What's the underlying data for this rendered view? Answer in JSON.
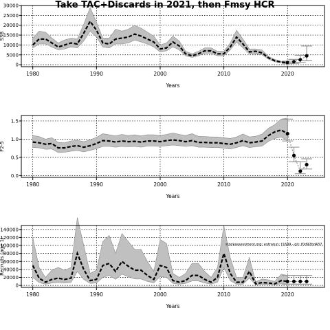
{
  "page_title": "Take TAC+Discards in 2021, then Fmsy HCR",
  "watermark": "stockassessment.org: extrarun: t1699 - git: f0d92bd437",
  "colors": {
    "band": "#c0c0c0",
    "band_edge": "#8a8a8a",
    "line": "#000000",
    "forecast": "#999999"
  },
  "chart_data": [
    {
      "type": "line",
      "name": "ssb",
      "title": "",
      "xlabel": "Years",
      "ylabel": "SSB",
      "xlim": [
        1978.2,
        2025.8
      ],
      "ylim": [
        -1000,
        30000
      ],
      "xticks": [
        1980,
        1990,
        2000,
        2010,
        2020
      ],
      "yticks": [
        0,
        5000,
        10000,
        15000,
        20000,
        25000,
        30000
      ],
      "grid": true,
      "x": [
        1980,
        1981,
        1982,
        1983,
        1984,
        1985,
        1986,
        1987,
        1988,
        1989,
        1990,
        1991,
        1992,
        1993,
        1994,
        1995,
        1996,
        1997,
        1998,
        1999,
        2000,
        2001,
        2002,
        2003,
        2004,
        2005,
        2006,
        2007,
        2008,
        2009,
        2010,
        2011,
        2012,
        2013,
        2014,
        2015,
        2016,
        2017,
        2018,
        2019,
        2020
      ],
      "estimate": [
        10000,
        13000,
        13000,
        11000,
        9000,
        10000,
        11000,
        10500,
        16000,
        22000,
        17500,
        11000,
        10500,
        13000,
        13500,
        14000,
        15500,
        14500,
        13000,
        11500,
        8000,
        8500,
        11500,
        9500,
        5500,
        4500,
        5500,
        7000,
        7000,
        5500,
        5500,
        9000,
        14000,
        10500,
        6500,
        6800,
        6000,
        3500,
        2000,
        1300,
        1100
      ],
      "lower": [
        8500,
        10500,
        10500,
        9000,
        7500,
        8000,
        9000,
        8500,
        12000,
        17000,
        14000,
        9000,
        8500,
        10500,
        10500,
        11000,
        12500,
        11500,
        10500,
        9000,
        6500,
        7000,
        9000,
        7500,
        4500,
        3700,
        4500,
        5800,
        5800,
        4500,
        4500,
        7500,
        11500,
        8500,
        5500,
        5500,
        5000,
        2800,
        1500,
        900,
        700
      ],
      "upper": [
        13500,
        17000,
        16500,
        13500,
        11000,
        12500,
        13500,
        13000,
        20500,
        29000,
        21500,
        13500,
        13500,
        18000,
        17000,
        18000,
        20000,
        18500,
        16500,
        14500,
        10000,
        11000,
        14500,
        12000,
        6800,
        5500,
        6800,
        8500,
        8500,
        6800,
        6800,
        11000,
        17500,
        13000,
        8000,
        8000,
        7500,
        4200,
        2700,
        1800,
        1600
      ],
      "forecast": {
        "x": [
          2020,
          2021,
          2022,
          2023
        ],
        "median": [
          1100,
          1500,
          2500,
          4500
        ],
        "lower": [
          500,
          700,
          1200,
          2000
        ],
        "upper": [
          1800,
          2700,
          4800,
          9500
        ]
      }
    },
    {
      "type": "line",
      "name": "fbar",
      "title": "",
      "xlabel": "Years",
      "ylabel": "F2-5",
      "xlim": [
        1978.2,
        2025.8
      ],
      "ylim": [
        -0.05,
        1.65
      ],
      "xticks": [
        1980,
        1990,
        2000,
        2010,
        2020
      ],
      "yticks": [
        0.0,
        0.5,
        1.0,
        1.5
      ],
      "ytick_labels": [
        "0.0",
        "0.5",
        "1.0",
        "1.5"
      ],
      "grid": true,
      "x": [
        1980,
        1981,
        1982,
        1983,
        1984,
        1985,
        1986,
        1987,
        1988,
        1989,
        1990,
        1991,
        1992,
        1993,
        1994,
        1995,
        1996,
        1997,
        1998,
        1999,
        2000,
        2001,
        2002,
        2003,
        2004,
        2005,
        2006,
        2007,
        2008,
        2009,
        2010,
        2011,
        2012,
        2013,
        2014,
        2015,
        2016,
        2017,
        2018,
        2019,
        2020
      ],
      "estimate": [
        0.92,
        0.9,
        0.86,
        0.88,
        0.76,
        0.76,
        0.8,
        0.82,
        0.78,
        0.82,
        0.88,
        0.96,
        0.95,
        0.92,
        0.95,
        0.93,
        0.94,
        0.92,
        0.95,
        0.95,
        0.93,
        0.96,
        0.98,
        0.96,
        0.93,
        0.96,
        0.91,
        0.91,
        0.9,
        0.9,
        0.88,
        0.86,
        0.9,
        0.96,
        0.9,
        0.92,
        0.95,
        1.1,
        1.2,
        1.25,
        1.15
      ],
      "lower": [
        0.77,
        0.76,
        0.72,
        0.73,
        0.63,
        0.64,
        0.67,
        0.69,
        0.65,
        0.69,
        0.74,
        0.8,
        0.8,
        0.78,
        0.8,
        0.79,
        0.8,
        0.78,
        0.81,
        0.81,
        0.8,
        0.82,
        0.84,
        0.82,
        0.8,
        0.82,
        0.78,
        0.78,
        0.77,
        0.77,
        0.75,
        0.73,
        0.77,
        0.82,
        0.77,
        0.79,
        0.81,
        0.94,
        1.02,
        1.06,
        0.95
      ],
      "upper": [
        1.1,
        1.07,
        1.0,
        1.04,
        0.91,
        0.9,
        0.95,
        0.97,
        0.93,
        0.98,
        1.05,
        1.15,
        1.12,
        1.09,
        1.13,
        1.1,
        1.12,
        1.09,
        1.12,
        1.12,
        1.1,
        1.13,
        1.17,
        1.13,
        1.1,
        1.15,
        1.08,
        1.07,
        1.06,
        1.06,
        1.04,
        1.02,
        1.06,
        1.14,
        1.06,
        1.08,
        1.14,
        1.3,
        1.4,
        1.55,
        1.58
      ],
      "forecast": {
        "x": [
          2020,
          2021,
          2022,
          2023
        ],
        "median": [
          1.15,
          0.55,
          0.12,
          0.3
        ],
        "lower": [
          0.95,
          0.38,
          0.05,
          0.18
        ],
        "upper": [
          1.55,
          0.78,
          0.38,
          0.46
        ]
      }
    },
    {
      "type": "line",
      "name": "recruitment",
      "title": "",
      "xlabel": "Years",
      "ylabel": "Recruits (age 1)",
      "xlim": [
        1978.2,
        2025.8
      ],
      "ylim": [
        -5000,
        150000
      ],
      "xticks": [
        1980,
        1990,
        2000,
        2010,
        2020
      ],
      "yticks": [
        0,
        20000,
        40000,
        60000,
        80000,
        100000,
        120000,
        140000
      ],
      "ytick_labels": [
        "0",
        "20000",
        "40000",
        "60000",
        "80000",
        "100000",
        "120000",
        "140000"
      ],
      "grid": true,
      "x": [
        1980,
        1981,
        1982,
        1983,
        1984,
        1985,
        1986,
        1987,
        1988,
        1989,
        1990,
        1991,
        1992,
        1993,
        1994,
        1995,
        1996,
        1997,
        1998,
        1999,
        2000,
        2001,
        2002,
        2003,
        2004,
        2005,
        2006,
        2007,
        2008,
        2009,
        2010,
        2011,
        2012,
        2013,
        2014,
        2015,
        2016,
        2017,
        2018,
        2019,
        2020
      ],
      "estimate": [
        50000,
        18000,
        8000,
        15000,
        18000,
        15000,
        18000,
        80000,
        40000,
        12000,
        15000,
        50000,
        55000,
        35000,
        60000,
        48000,
        38000,
        38000,
        25000,
        15000,
        50000,
        45000,
        12000,
        8000,
        12000,
        25000,
        25000,
        15000,
        8000,
        20000,
        80000,
        30000,
        8000,
        8000,
        35000,
        4000,
        7000,
        6000,
        4000,
        12000,
        10000
      ],
      "lower": [
        20000,
        7000,
        3000,
        6000,
        7000,
        6000,
        7000,
        35000,
        15000,
        5000,
        6000,
        20000,
        25000,
        15000,
        28000,
        22000,
        16000,
        16000,
        10000,
        6000,
        22000,
        20000,
        5000,
        3000,
        5000,
        11000,
        11000,
        6000,
        3000,
        8000,
        45000,
        12000,
        3000,
        3000,
        18000,
        1500,
        2500,
        2000,
        1500,
        4000,
        3000
      ],
      "upper": [
        120000,
        45000,
        20000,
        38000,
        45000,
        38000,
        45000,
        170000,
        100000,
        30000,
        38000,
        110000,
        125000,
        80000,
        130000,
        110000,
        90000,
        90000,
        60000,
        35000,
        115000,
        105000,
        30000,
        20000,
        30000,
        55000,
        55000,
        35000,
        20000,
        45000,
        150000,
        70000,
        20000,
        20000,
        70000,
        9000,
        16000,
        14000,
        10000,
        28000,
        25000
      ],
      "forecast": {
        "x": [
          2020,
          2021,
          2022,
          2023
        ],
        "median": [
          10000,
          10000,
          10000,
          10000
        ],
        "lower": [
          3000,
          3000,
          3000,
          3000
        ],
        "upper": [
          25000,
          25000,
          25000,
          25000
        ]
      }
    }
  ]
}
